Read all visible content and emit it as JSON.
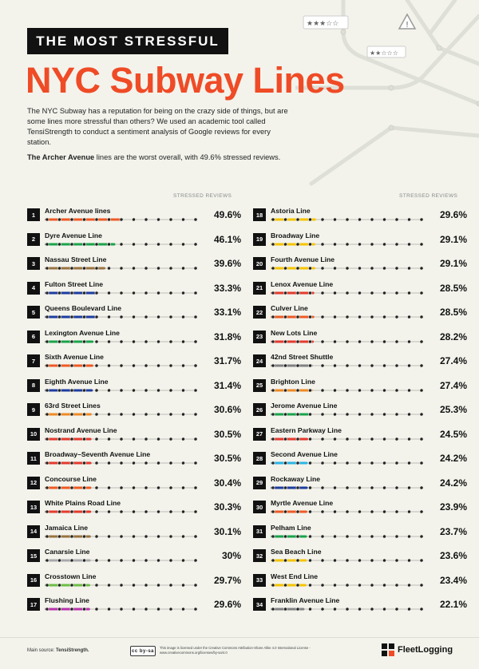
{
  "header": {
    "kicker": "THE MOST STRESSFUL",
    "title": "NYC Subway Lines",
    "intro": "The NYC Subway has a reputation for being on the crazy side of things, but are some lines more stressful than others? We used an academic tool called TensiStrength to conduct a sentiment analysis of Google reviews for every station.",
    "summary_bold": "The Archer Avenue",
    "summary_rest": " lines are the worst overall, with 49.6% stressed reviews."
  },
  "chart_data": {
    "type": "bar",
    "value_label": "STRESSED REVIEWS",
    "unit": "%",
    "axis_max": 100,
    "series": [
      {
        "rank": "1",
        "name": "Archer Avenue lines",
        "value": 49.6,
        "display": "49.6%",
        "color": "#ef5a24"
      },
      {
        "rank": "2",
        "name": "Dyre Avenue Line",
        "value": 46.1,
        "display": "46.1%",
        "color": "#1aa34a"
      },
      {
        "rank": "3",
        "name": "Nassau Street Line",
        "value": 39.6,
        "display": "39.6%",
        "color": "#99733f"
      },
      {
        "rank": "4",
        "name": "Fulton Street Line",
        "value": 33.3,
        "display": "33.3%",
        "color": "#1e3ca0"
      },
      {
        "rank": "5",
        "name": "Queens Boulevard Line",
        "value": 33.1,
        "display": "33.1%",
        "color": "#1e3ca0"
      },
      {
        "rank": "6",
        "name": "Lexington Avenue Line",
        "value": 31.8,
        "display": "31.8%",
        "color": "#1aa34a"
      },
      {
        "rank": "7",
        "name": "Sixth Avenue Line",
        "value": 31.7,
        "display": "31.7%",
        "color": "#ef5a24"
      },
      {
        "rank": "8",
        "name": "Eighth Avenue Line",
        "value": 31.4,
        "display": "31.4%",
        "color": "#1e3ca0"
      },
      {
        "rank": "9",
        "name": "63rd Street Lines",
        "value": 30.6,
        "display": "30.6%",
        "color": "#ef8a24"
      },
      {
        "rank": "10",
        "name": "Nostrand Avenue Line",
        "value": 30.5,
        "display": "30.5%",
        "color": "#e53a2e"
      },
      {
        "rank": "11",
        "name": "Broadway–Seventh Avenue Line",
        "value": 30.5,
        "display": "30.5%",
        "color": "#e53a2e"
      },
      {
        "rank": "12",
        "name": "Concourse Line",
        "value": 30.4,
        "display": "30.4%",
        "color": "#ef5a24"
      },
      {
        "rank": "13",
        "name": "White Plains Road Line",
        "value": 30.3,
        "display": "30.3%",
        "color": "#e53a2e"
      },
      {
        "rank": "14",
        "name": "Jamaica Line",
        "value": 30.1,
        "display": "30.1%",
        "color": "#99733f"
      },
      {
        "rank": "15",
        "name": "Canarsie Line",
        "value": 30,
        "display": "30%",
        "color": "#a7a9ac"
      },
      {
        "rank": "16",
        "name": "Crosstown Line",
        "value": 29.7,
        "display": "29.7%",
        "color": "#6cbe45"
      },
      {
        "rank": "17",
        "name": "Flushing Line",
        "value": 29.6,
        "display": "29.6%",
        "color": "#b933ad"
      },
      {
        "rank": "18",
        "name": "Astoria Line",
        "value": 29.6,
        "display": "29.6%",
        "color": "#f5c400"
      },
      {
        "rank": "19",
        "name": "Broadway Line",
        "value": 29.1,
        "display": "29.1%",
        "color": "#f5c400"
      },
      {
        "rank": "20",
        "name": "Fourth Avenue Line",
        "value": 29.1,
        "display": "29.1%",
        "color": "#f5c400"
      },
      {
        "rank": "21",
        "name": "Lenox Avenue Line",
        "value": 28.5,
        "display": "28.5%",
        "color": "#e53a2e"
      },
      {
        "rank": "22",
        "name": "Culver Line",
        "value": 28.5,
        "display": "28.5%",
        "color": "#ef5a24"
      },
      {
        "rank": "23",
        "name": "New Lots Line",
        "value": 28.2,
        "display": "28.2%",
        "color": "#e53a2e"
      },
      {
        "rank": "24",
        "name": "42nd Street Shuttle",
        "value": 27.4,
        "display": "27.4%",
        "color": "#808183"
      },
      {
        "rank": "25",
        "name": "Brighton Line",
        "value": 27.4,
        "display": "27.4%",
        "color": "#ef8a24"
      },
      {
        "rank": "26",
        "name": "Jerome Avenue Line",
        "value": 25.3,
        "display": "25.3%",
        "color": "#1aa34a"
      },
      {
        "rank": "27",
        "name": "Eastern Parkway Line",
        "value": 24.5,
        "display": "24.5%",
        "color": "#e53a2e"
      },
      {
        "rank": "28",
        "name": "Second Avenue Line",
        "value": 24.2,
        "display": "24.2%",
        "color": "#2bb5e6"
      },
      {
        "rank": "29",
        "name": "Rockaway Line",
        "value": 24.2,
        "display": "24.2%",
        "color": "#1e3ca0"
      },
      {
        "rank": "30",
        "name": "Myrtle Avenue Line",
        "value": 23.9,
        "display": "23.9%",
        "color": "#ef5a24"
      },
      {
        "rank": "31",
        "name": "Pelham Line",
        "value": 23.7,
        "display": "23.7%",
        "color": "#1aa34a"
      },
      {
        "rank": "32",
        "name": "Sea Beach Line",
        "value": 23.6,
        "display": "23.6%",
        "color": "#f5c400"
      },
      {
        "rank": "33",
        "name": "West End Line",
        "value": 23.4,
        "display": "23.4%",
        "color": "#f5c400"
      },
      {
        "rank": "34",
        "name": "Franklin Avenue Line",
        "value": 22.1,
        "display": "22.1%",
        "color": "#808183"
      }
    ]
  },
  "footer": {
    "source_label": "Main source: ",
    "source_name": "TensiStrength.",
    "cc_badge": "cc by-sa",
    "license_text": "This image is licensed under the Creative Commons Attribution-Share Alike 4.0 International License - www.creativecommons.org/licenses/by-sa/4.0",
    "brand": "FleetLogging",
    "brand_icon": "fleetlogging-logo-icon"
  }
}
